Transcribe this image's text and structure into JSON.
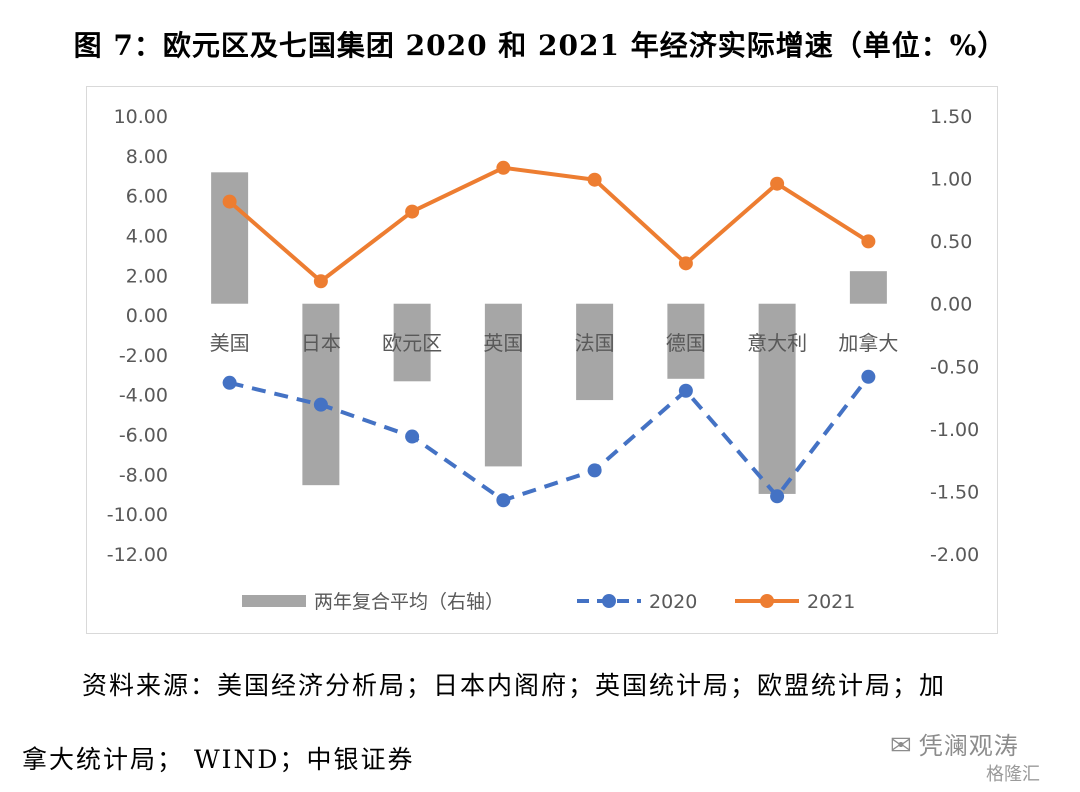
{
  "title": "图 7：欧元区及七国集团 2020 和 2021 年经济实际增速（单位：%）",
  "chart_data": {
    "type": "bar",
    "categories": [
      "美国",
      "日本",
      "欧元区",
      "英国",
      "法国",
      "德国",
      "意大利",
      "加拿大"
    ],
    "series": [
      {
        "name": "两年复合平均（右轴）",
        "type": "bar",
        "axis": "right",
        "color": "#a6a6a6",
        "values": [
          1.05,
          -1.45,
          -0.62,
          -1.3,
          -0.77,
          -0.6,
          -1.52,
          0.26
        ]
      },
      {
        "name": "2020",
        "type": "line",
        "style": "dashed",
        "axis": "left",
        "color": "#4472c4",
        "values": [
          -3.4,
          -4.5,
          -6.1,
          -9.3,
          -7.8,
          -3.8,
          -9.1,
          -3.1
        ]
      },
      {
        "name": "2021",
        "type": "line",
        "style": "solid",
        "axis": "left",
        "color": "#ed7d31",
        "values": [
          5.7,
          1.7,
          5.2,
          7.4,
          6.8,
          2.6,
          6.6,
          3.7
        ]
      }
    ],
    "y_left": {
      "ylim": [
        -12,
        10
      ],
      "ticks": [
        "10.00",
        "8.00",
        "6.00",
        "4.00",
        "2.00",
        "0.00",
        "-2.00",
        "-4.00",
        "-6.00",
        "-8.00",
        "-10.00",
        "-12.00"
      ]
    },
    "y_right": {
      "ylim": [
        -2.0,
        1.5
      ],
      "ticks": [
        "1.50",
        "1.00",
        "0.50",
        "0.00",
        "-0.50",
        "-1.00",
        "-1.50",
        "-2.00"
      ]
    },
    "grid": false,
    "legend_position": "bottom"
  },
  "source": {
    "line1": "资料来源：美国经济分析局；日本内阁府；英国统计局；欧盟统计局；加",
    "line2": "拿大统计局； WIND；中银证券"
  },
  "watermark": {
    "text": "凭澜观涛",
    "sub": "格隆汇"
  }
}
